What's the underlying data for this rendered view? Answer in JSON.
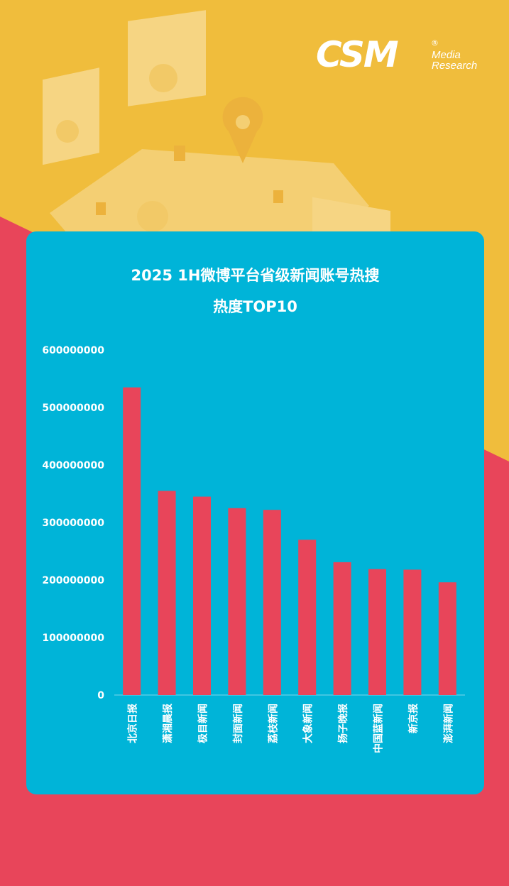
{
  "brand": {
    "main": "CSM",
    "sub1": "Media",
    "sub2": "Research",
    "reg": "®"
  },
  "chart_data": {
    "type": "bar",
    "title": "2025 1H微博平台省级新闻账号热搜",
    "subtitle": "热度TOP10",
    "categories": [
      "北京日报",
      "潇湘晨报",
      "极目新闻",
      "封面新闻",
      "荔枝新闻",
      "大象新闻",
      "扬子晚报",
      "中国蓝新闻",
      "新京报",
      "澎湃新闻"
    ],
    "values": [
      535000000,
      355000000,
      345000000,
      325000000,
      322000000,
      270000000,
      231000000,
      219000000,
      218000000,
      196000000
    ],
    "yticks": [
      "0",
      "100000000",
      "200000000",
      "300000000",
      "400000000",
      "500000000",
      "600000000"
    ],
    "ylim": [
      0,
      600000000
    ],
    "xlabel": "",
    "ylabel": "",
    "grid": false,
    "legend": "none",
    "bar_color": "#e8455a",
    "background_color": "#00b4d8",
    "text_color": "#ffffff"
  }
}
